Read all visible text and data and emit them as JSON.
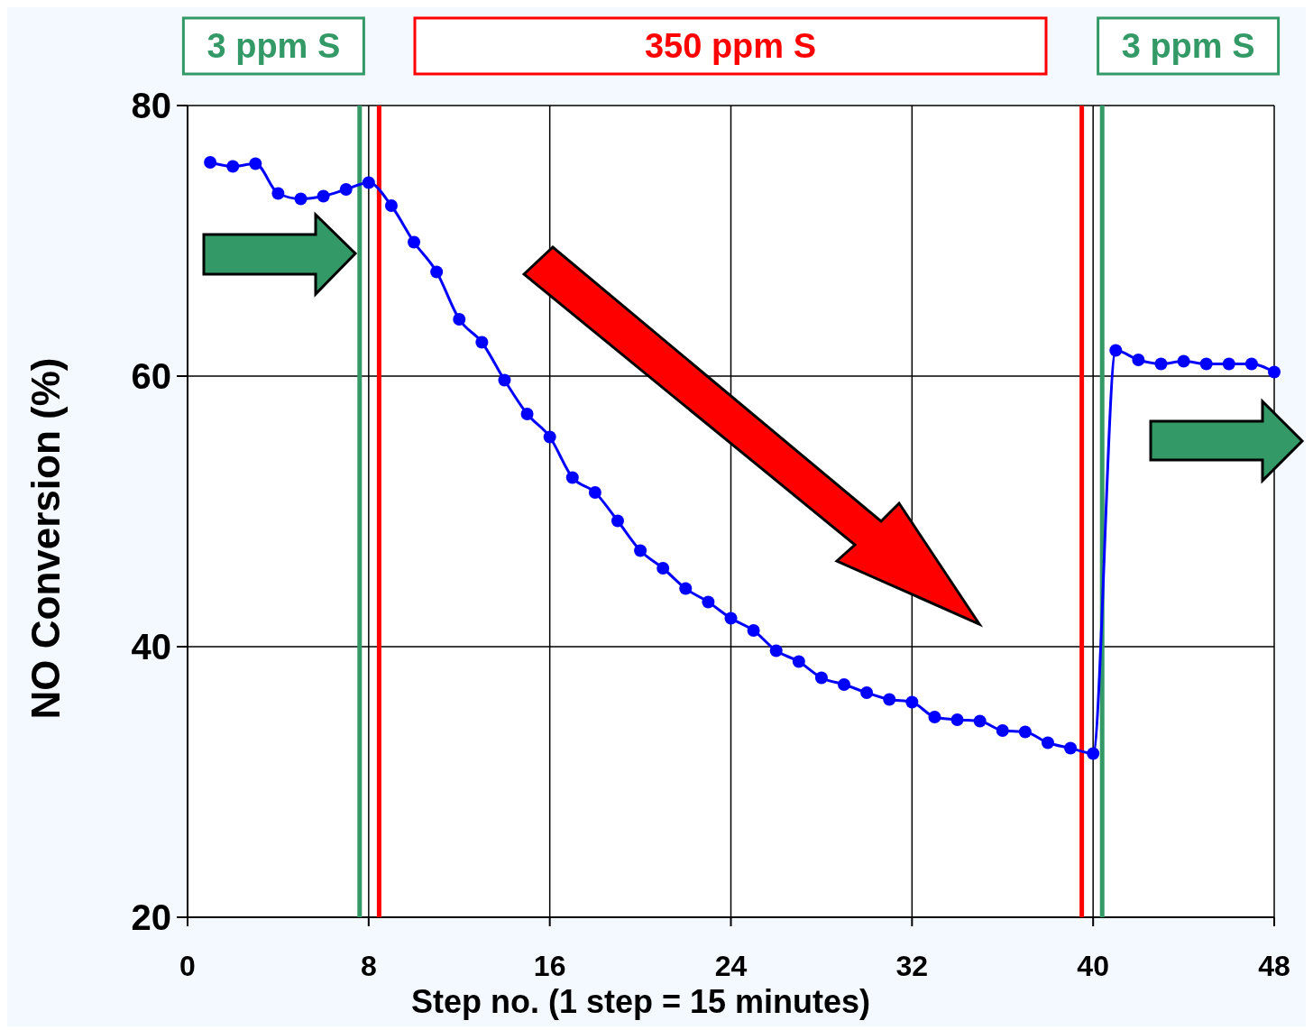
{
  "chart_data": {
    "type": "line",
    "xlabel": "Step no. (1 step = 15 minutes)",
    "ylabel": "NO Conversion (%)",
    "x": [
      1,
      2,
      3,
      4,
      5,
      6,
      7,
      8,
      9,
      10,
      11,
      12,
      13,
      14,
      15,
      16,
      17,
      18,
      19,
      20,
      21,
      22,
      23,
      24,
      25,
      26,
      27,
      28,
      29,
      30,
      31,
      32,
      33,
      34,
      35,
      36,
      37,
      38,
      39,
      40,
      41,
      42,
      43,
      44,
      45,
      46,
      47,
      48
    ],
    "series": [
      {
        "color": "#0000ff",
        "values": [
          75.8,
          75.5,
          75.7,
          73.5,
          73.1,
          73.3,
          73.8,
          74.3,
          72.6,
          69.9,
          67.7,
          64.2,
          62.5,
          59.7,
          57.2,
          55.5,
          52.5,
          51.4,
          49.3,
          47.1,
          45.8,
          44.3,
          43.3,
          42.1,
          41.2,
          39.7,
          38.9,
          37.7,
          37.2,
          36.6,
          36.1,
          35.9,
          34.8,
          34.6,
          34.5,
          33.8,
          33.7,
          32.9,
          32.5,
          32.1,
          61.9,
          61.2,
          60.9,
          61.1,
          60.9,
          60.9,
          60.9,
          60.3
        ]
      }
    ],
    "xlim": [
      0,
      48
    ],
    "xticks": [
      0,
      8,
      16,
      24,
      32,
      40,
      48
    ],
    "ylim": [
      20,
      80
    ],
    "yticks": [
      20,
      40,
      60,
      80
    ],
    "grid": true,
    "marker": "circle",
    "line_style": "solid",
    "ref_lines": [
      {
        "axis": "x",
        "value": 7.6,
        "color": "#339966",
        "label": "3 ppm S"
      },
      {
        "axis": "x",
        "value": 8.46,
        "color": "#ff0000",
        "label": "350 ppm S"
      },
      {
        "axis": "x",
        "value": 39.5,
        "color": "#ff0000"
      },
      {
        "axis": "x",
        "value": 40.4,
        "color": "#339966",
        "label": "3 ppm S"
      }
    ]
  }
}
